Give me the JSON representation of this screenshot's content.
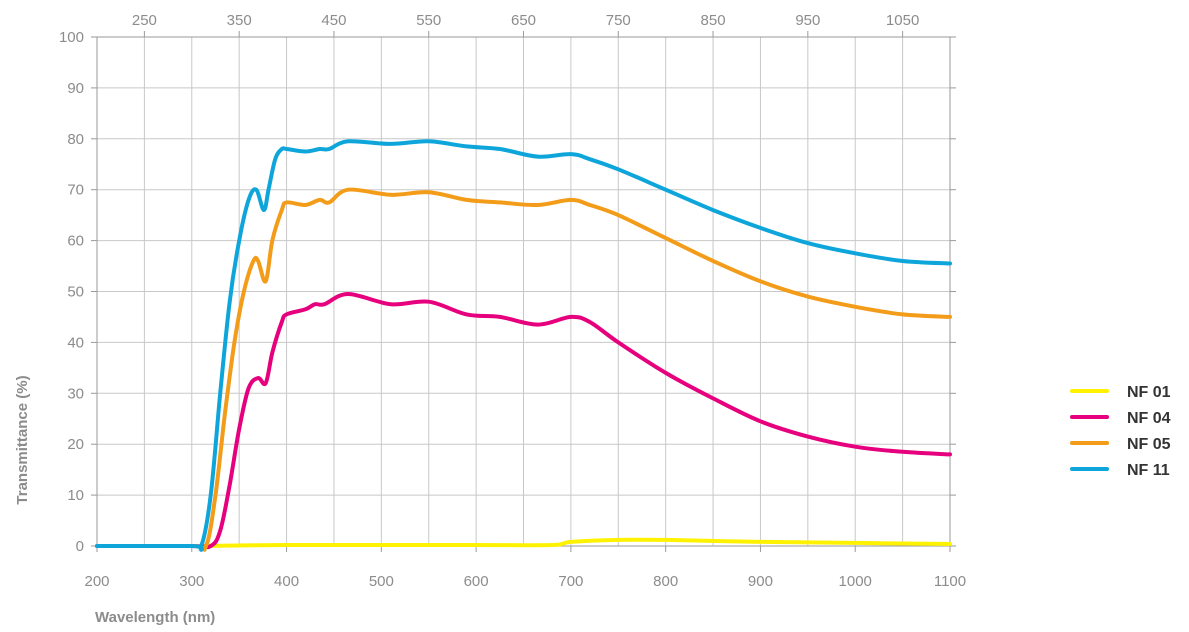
{
  "chart_data": {
    "type": "line",
    "xlabel": "Wavelength (nm)",
    "ylabel": "Transmittance (%)",
    "xlim": [
      200,
      1100
    ],
    "ylim": [
      0,
      100
    ],
    "x_ticks_bottom": [
      200,
      300,
      400,
      500,
      600,
      700,
      800,
      900,
      1000,
      1100
    ],
    "x_ticks_top": [
      250,
      350,
      450,
      550,
      650,
      750,
      850,
      950,
      1050
    ],
    "y_ticks": [
      0,
      10,
      20,
      30,
      40,
      50,
      60,
      70,
      80,
      90,
      100
    ],
    "x_tick_labels_bottom": [
      "200",
      "300",
      "400",
      "500",
      "600",
      "700",
      "800",
      "900",
      "1000",
      "1100"
    ],
    "x_tick_labels_top": [
      "250",
      "350",
      "450",
      "550",
      "650",
      "750",
      "850",
      "950",
      "1050"
    ],
    "y_tick_labels": [
      "0",
      "10",
      "20",
      "30",
      "40",
      "50",
      "60",
      "70",
      "80",
      "90",
      "100"
    ],
    "grid": true,
    "legend_position": "right",
    "series": [
      {
        "name": "NF 01",
        "color": "#fff200",
        "x": [
          310,
          400,
          500,
          600,
          680,
          700,
          750,
          800,
          900,
          1000,
          1100
        ],
        "y": [
          0,
          0.2,
          0.2,
          0.2,
          0.2,
          0.8,
          1.2,
          1.2,
          0.8,
          0.6,
          0.4
        ]
      },
      {
        "name": "NF 04",
        "color": "#e6007e",
        "x": [
          200,
          300,
          320,
          330,
          340,
          350,
          360,
          370,
          378,
          385,
          395,
          400,
          420,
          430,
          440,
          465,
          510,
          550,
          590,
          625,
          665,
          700,
          720,
          750,
          800,
          850,
          900,
          950,
          1000,
          1050,
          1100
        ],
        "y": [
          0,
          0,
          0,
          3,
          12,
          23,
          31,
          33,
          32,
          38,
          44,
          45.5,
          46.5,
          47.5,
          47.5,
          49.5,
          47.5,
          48,
          45.5,
          45,
          43.5,
          45,
          44,
          40,
          34,
          29,
          24.5,
          21.5,
          19.5,
          18.5,
          18
        ]
      },
      {
        "name": "NF 05",
        "color": "#f39c1a",
        "x": [
          200,
          300,
          315,
          325,
          335,
          345,
          355,
          365,
          370,
          378,
          385,
          395,
          400,
          420,
          435,
          445,
          465,
          510,
          550,
          590,
          625,
          665,
          700,
          720,
          750,
          800,
          850,
          900,
          950,
          1000,
          1050,
          1100
        ],
        "y": [
          0,
          0,
          0,
          10,
          26,
          40,
          50,
          56,
          56,
          52,
          60,
          66,
          67.5,
          67,
          68,
          67.5,
          70,
          69,
          69.5,
          68,
          67.5,
          67,
          68,
          67,
          65,
          60.5,
          56,
          52,
          49,
          47,
          45.5,
          45
        ]
      },
      {
        "name": "NF 11",
        "color": "#0ea5db",
        "x": [
          200,
          300,
          310,
          320,
          330,
          340,
          350,
          360,
          368,
          376,
          381,
          388,
          395,
          400,
          420,
          435,
          445,
          465,
          510,
          550,
          590,
          625,
          665,
          700,
          720,
          750,
          800,
          850,
          900,
          950,
          1000,
          1050,
          1100
        ],
        "y": [
          0,
          0,
          0,
          10,
          30,
          48,
          60,
          68,
          70,
          66,
          70,
          76,
          78,
          78,
          77.5,
          78,
          78,
          79.5,
          79,
          79.5,
          78.5,
          78,
          76.5,
          77,
          76,
          74,
          70,
          66,
          62.5,
          59.5,
          57.5,
          56,
          55.5
        ]
      }
    ]
  }
}
